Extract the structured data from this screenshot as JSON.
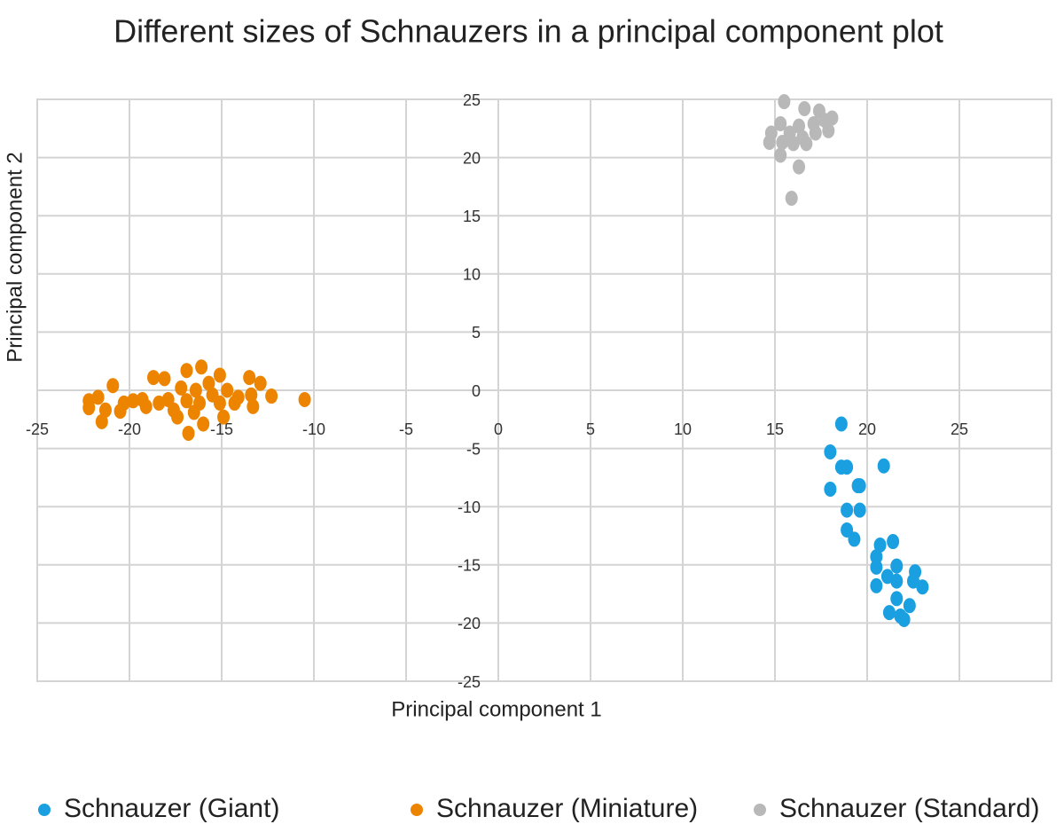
{
  "chart_data": {
    "type": "scatter",
    "title": "Different sizes of Schnauzers in a principal component plot",
    "x_label": "Principal component 1",
    "y_label": "Principal component 2",
    "xlim": [
      -25,
      30
    ],
    "ylim": [
      -25,
      25
    ],
    "xticks": [
      -25,
      -20,
      -15,
      -10,
      -5,
      0,
      5,
      10,
      15,
      20,
      25
    ],
    "yticks": [
      -25,
      -20,
      -15,
      -10,
      -5,
      0,
      5,
      10,
      15,
      20,
      25
    ],
    "grid": true,
    "legend": "bottom",
    "series": [
      {
        "name": "Schnauzer (Giant)",
        "color": "#1a9fe0",
        "x": [
          18.6,
          18.0,
          18.6,
          18.9,
          20.9,
          18.0,
          19.5,
          19.6,
          18.9,
          19.6,
          18.9,
          19.3,
          21.4,
          20.7,
          20.5,
          20.5,
          21.6,
          21.1,
          20.5,
          21.6,
          22.6,
          22.5,
          23.0,
          21.6,
          22.3,
          21.2,
          21.8,
          22.0
        ],
        "y": [
          -2.9,
          -5.3,
          -6.6,
          -6.6,
          -6.5,
          -8.5,
          -8.2,
          -8.2,
          -10.3,
          -10.3,
          -12.0,
          -12.8,
          -13.0,
          -13.3,
          -14.3,
          -15.2,
          -15.1,
          -16.0,
          -16.8,
          -16.4,
          -15.6,
          -16.4,
          -16.9,
          -17.9,
          -18.5,
          -19.1,
          -19.4,
          -19.7
        ]
      },
      {
        "name": "Schnauzer (Miniature)",
        "color": "#ec8400",
        "x": [
          -10.5,
          -12.3,
          -12.9,
          -13.5,
          -15.1,
          -16.1,
          -16.9,
          -18.1,
          -18.7,
          -20.9,
          -22.2,
          -22.2,
          -21.5,
          -20.5,
          -19.8,
          -19.1,
          -18.4,
          -17.6,
          -16.8,
          -16.0,
          -14.9,
          -14.3,
          -13.3,
          -13.4,
          -14.7,
          -15.5,
          -16.4,
          -17.2,
          -16.9,
          -16.2,
          -17.9,
          -20.3,
          -21.3,
          -21.7,
          -15.7,
          -16.5,
          -17.4,
          -15.1,
          -14.1,
          -19.3
        ],
        "y": [
          -0.8,
          -0.5,
          0.6,
          1.1,
          1.3,
          2.0,
          1.7,
          1.0,
          1.1,
          0.4,
          -0.9,
          -1.5,
          -2.7,
          -1.8,
          -0.9,
          -1.4,
          -1.1,
          -1.7,
          -3.7,
          -2.9,
          -2.3,
          -1.1,
          -1.4,
          -0.4,
          0.0,
          -0.4,
          0.0,
          0.2,
          -0.9,
          -1.1,
          -0.8,
          -1.1,
          -1.7,
          -0.6,
          0.6,
          -1.9,
          -2.3,
          -1.1,
          -0.6,
          -0.8
        ]
      },
      {
        "name": "Schnauzer (Standard)",
        "color": "#b8b8b8",
        "x": [
          15.5,
          16.6,
          17.4,
          18.1,
          15.3,
          16.3,
          17.1,
          14.8,
          15.8,
          16.5,
          17.2,
          17.9,
          14.7,
          15.4,
          16.0,
          16.7,
          15.3,
          16.3,
          15.9,
          17.7
        ],
        "y": [
          24.8,
          24.2,
          24.0,
          23.4,
          22.9,
          22.7,
          22.9,
          22.1,
          22.1,
          21.7,
          22.1,
          22.3,
          21.3,
          21.3,
          21.2,
          21.2,
          20.2,
          19.2,
          16.5,
          23.2
        ]
      }
    ]
  }
}
